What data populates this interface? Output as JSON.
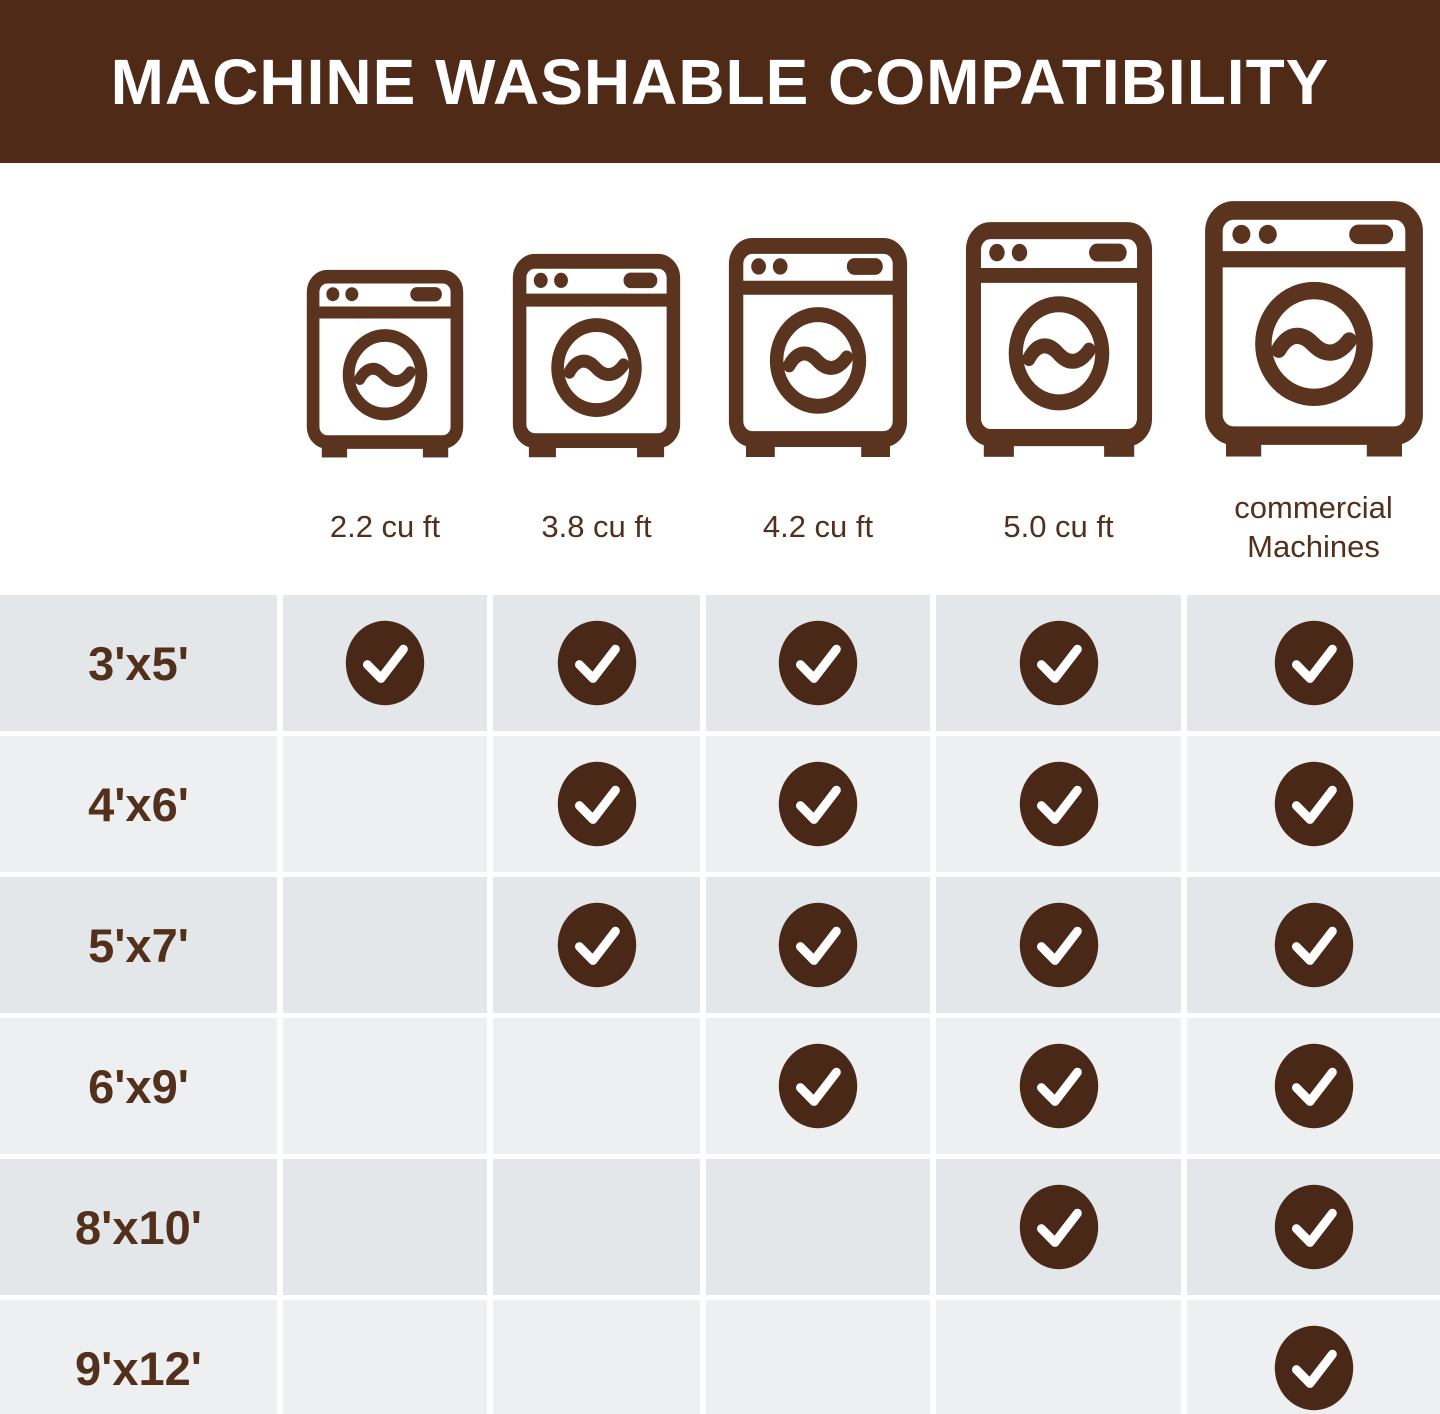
{
  "title": "MACHINE WASHABLE COMPATIBILITY",
  "machine_columns": [
    {
      "label": "2.2 cu ft"
    },
    {
      "label": "3.8 cu ft"
    },
    {
      "label": "4.2 cu ft"
    },
    {
      "label": "5.0 cu ft"
    },
    {
      "label": "commercial Machines"
    }
  ],
  "chart_data": {
    "type": "table",
    "title": "MACHINE WASHABLE COMPATIBILITY",
    "columns": [
      "2.2 cu ft",
      "3.8 cu ft",
      "4.2 cu ft",
      "5.0 cu ft",
      "commercial Machines"
    ],
    "rows": [
      "3'x5'",
      "4'x6'",
      "5'x7'",
      "6'x9'",
      "8'x10'",
      "9'x12'"
    ],
    "checked": [
      [
        1,
        1,
        1,
        1,
        1
      ],
      [
        0,
        1,
        1,
        1,
        1
      ],
      [
        0,
        1,
        1,
        1,
        1
      ],
      [
        0,
        0,
        1,
        1,
        1
      ],
      [
        0,
        0,
        0,
        1,
        1
      ],
      [
        0,
        0,
        0,
        0,
        1
      ]
    ]
  },
  "icons": {
    "washer": "washing-machine-icon",
    "check": "checkmark-icon"
  },
  "colors": {
    "header_bg": "#4E2A17",
    "title_text": "#FFFFFF",
    "icon_brown": "#5A341F",
    "text_brown": "#53301B",
    "check_bg": "#4A2817",
    "row_dark": "#E4E7E9",
    "row_light": "#EDEFF1",
    "grid_line": "#FFFFFF"
  }
}
